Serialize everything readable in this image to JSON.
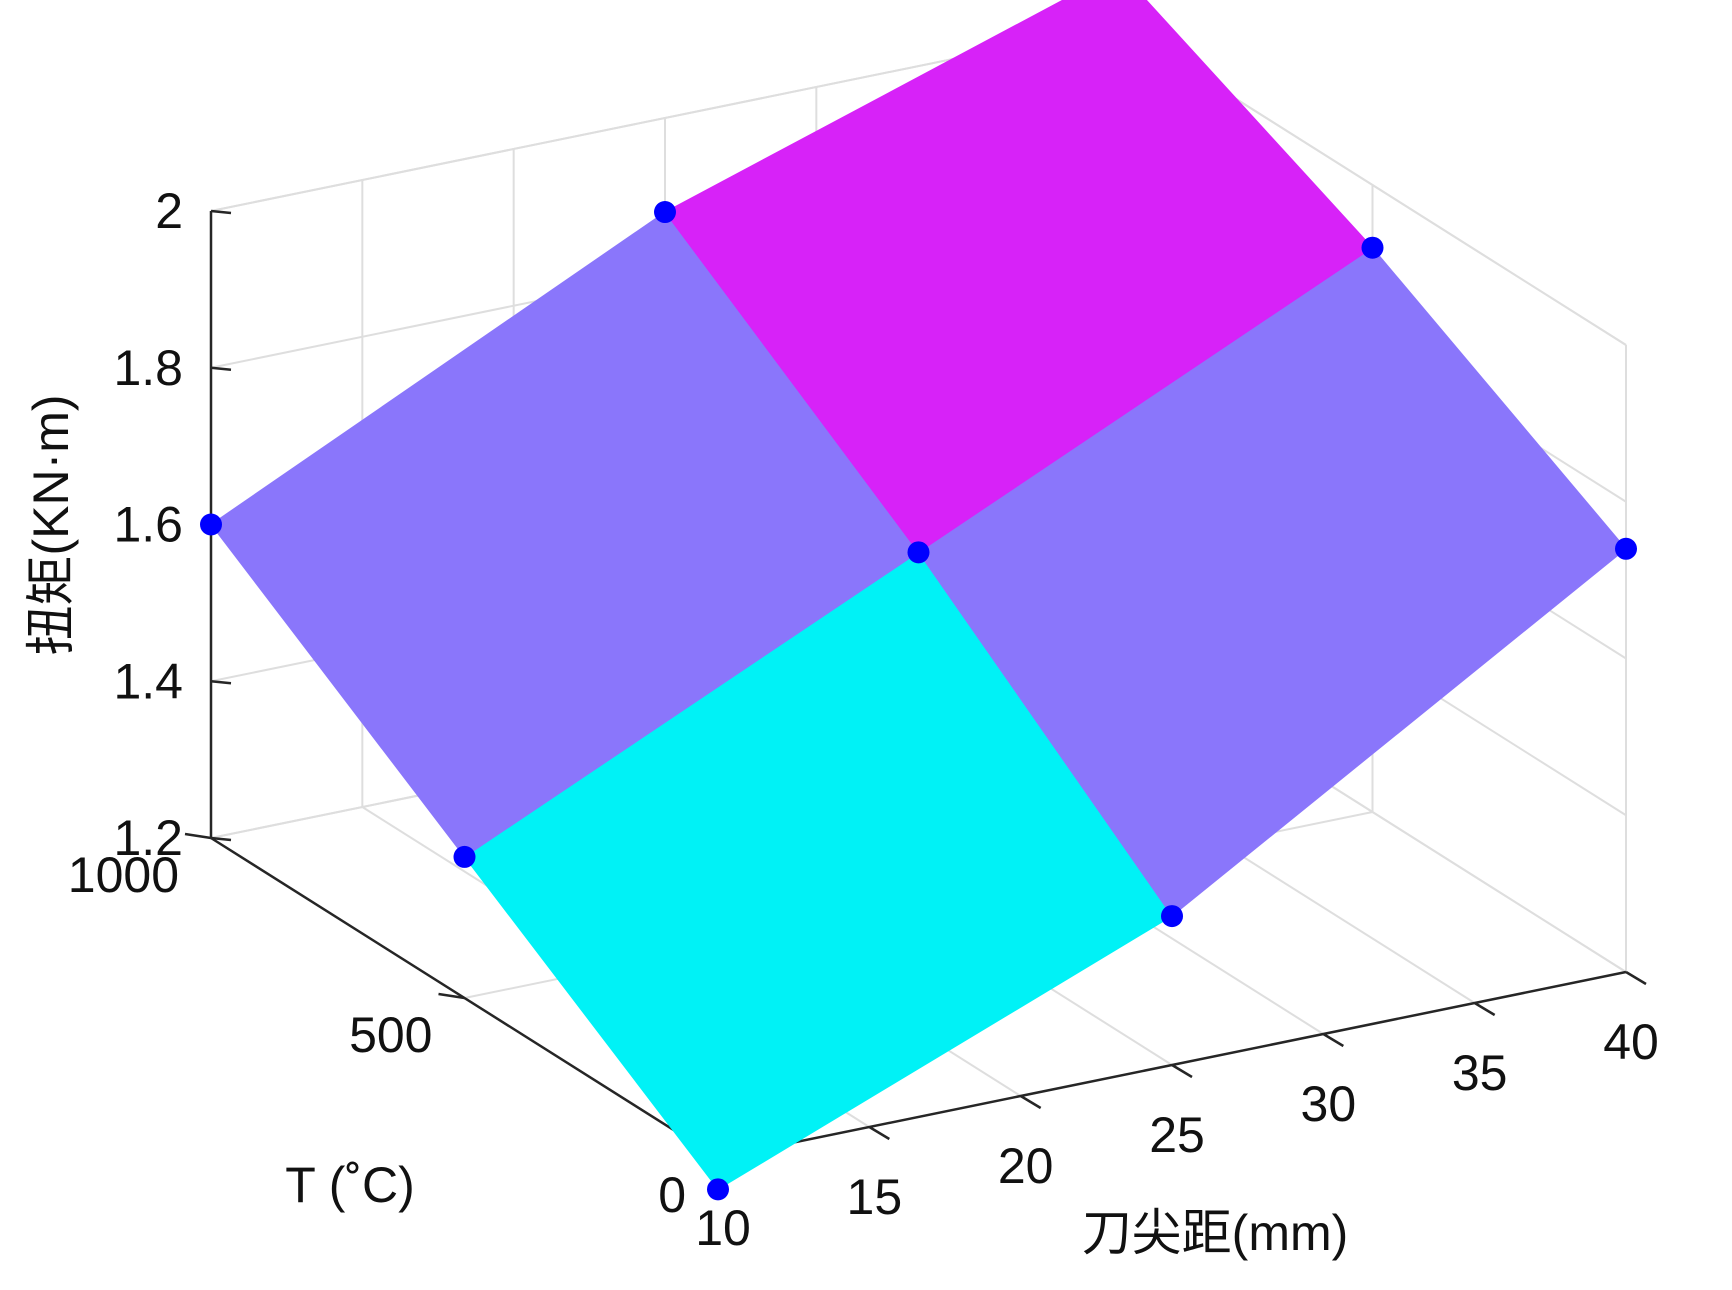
{
  "chart_data": {
    "type": "surface",
    "title": "",
    "xlabel": "刀尖距(mm)",
    "ylabel": "T (˚C)",
    "zlabel": "扭矩(KN·m)",
    "x_ticks": [
      "10",
      "15",
      "20",
      "25",
      "30",
      "35",
      "40"
    ],
    "y_ticks": [
      "0",
      "500",
      "1000"
    ],
    "z_ticks": [
      "1.2",
      "1.4",
      "1.6",
      "1.8",
      "2"
    ],
    "xlim": [
      10,
      40
    ],
    "ylim": [
      0,
      1000
    ],
    "zlim": [
      1.2,
      2.0
    ],
    "grid": true,
    "x": [
      10,
      25,
      40
    ],
    "y": [
      0,
      500,
      1000
    ],
    "z": [
      [
        1.16,
        1.39,
        1.74
      ],
      [
        1.38,
        1.65,
        1.92
      ],
      [
        1.6,
        1.88,
        2.07
      ]
    ],
    "marker_color": "#0000ff",
    "band_colors": [
      "#00f2f6",
      "#8a76fb",
      "#d722f8"
    ]
  }
}
